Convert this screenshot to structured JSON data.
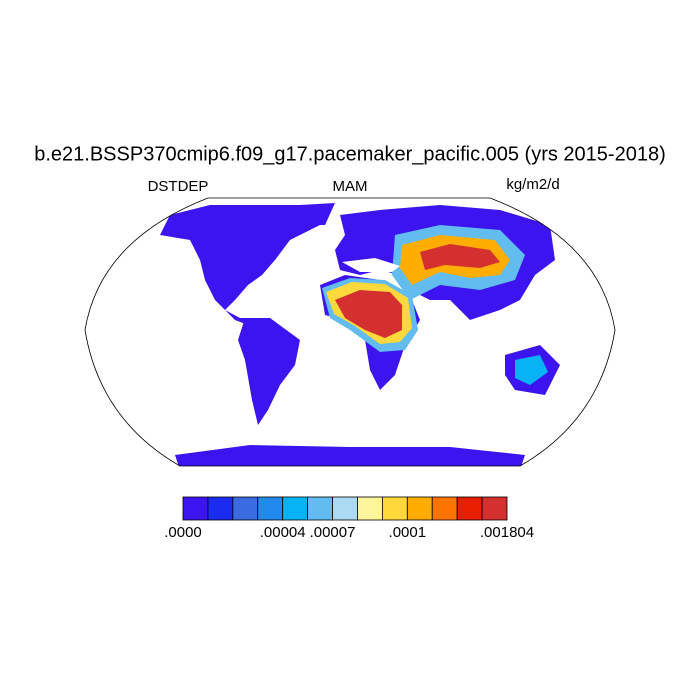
{
  "title": "b.e21.BSSP370cmip6.f09_g17.pacemaker_pacific.005 (yrs 2015-2018)",
  "left_label": "DSTDEP",
  "center_label": "MAM",
  "units": "kg/m2/d",
  "colorbar": {
    "colors": [
      "#3c14f0",
      "#1b2cf0",
      "#3a6be0",
      "#2289ef",
      "#08b3f5",
      "#62bcef",
      "#acdaf3",
      "#fff59c",
      "#ffd93c",
      "#ffad00",
      "#ff7400",
      "#e81e00",
      "#d4302f"
    ],
    "labels": [
      ".0000",
      null,
      null,
      null,
      ".00004",
      null,
      ".00007",
      null,
      null,
      ".0001",
      null,
      null,
      null,
      ".001804"
    ]
  }
}
